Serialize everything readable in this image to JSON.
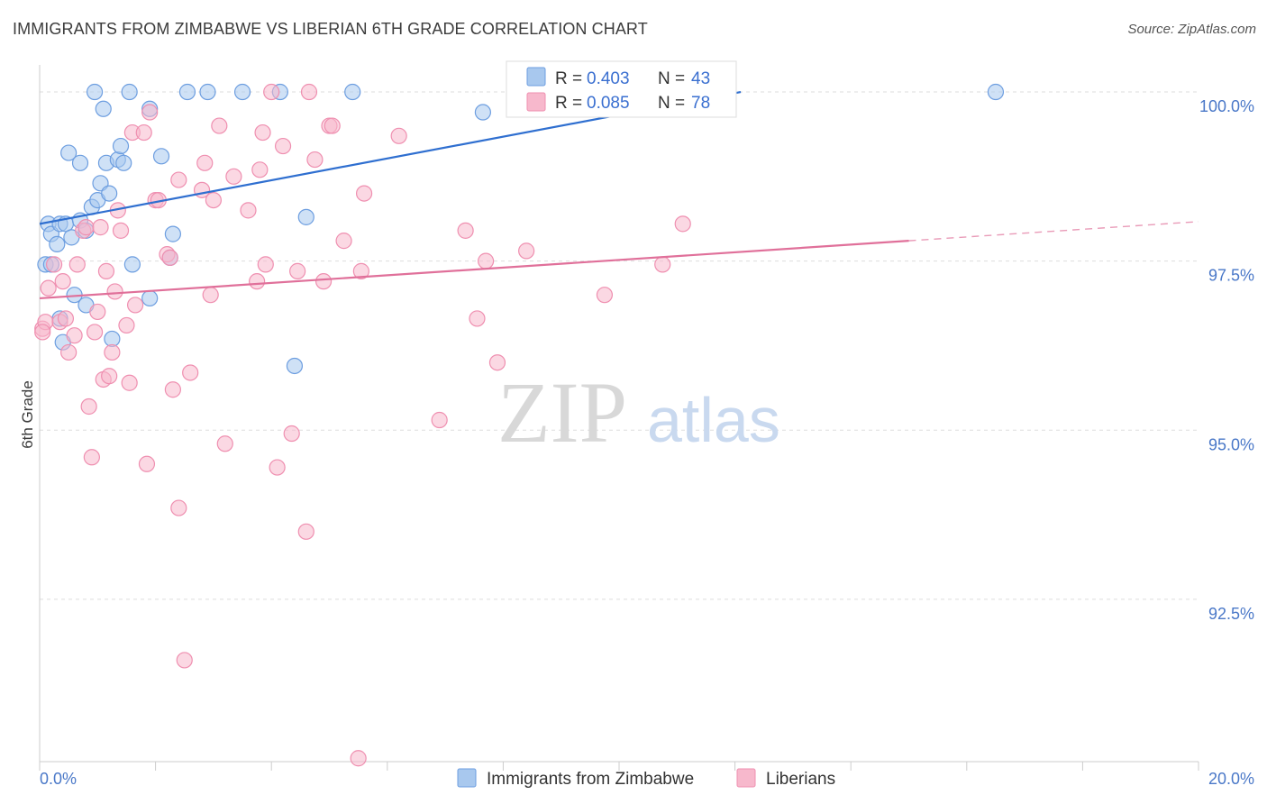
{
  "title": "IMMIGRANTS FROM ZIMBABWE VS LIBERIAN 6TH GRADE CORRELATION CHART",
  "source": "Source: ZipAtlas.com",
  "watermark": {
    "zip": "ZIP",
    "atlas": "atlas"
  },
  "colors": {
    "blue_fill": "#a8c8ee",
    "blue_stroke": "#6d9ee0",
    "blue_line": "#2f6fd0",
    "pink_fill": "#f7b8cc",
    "pink_stroke": "#ef8fb0",
    "pink_line": "#e0709a",
    "grid": "#dddddd",
    "tick_text": "#4a78c8"
  },
  "chart_data": {
    "type": "scatter",
    "title": "IMMIGRANTS FROM ZIMBABWE VS LIBERIAN 6TH GRADE CORRELATION CHART",
    "xlabel": "",
    "ylabel": "6th Grade",
    "xlim": [
      0,
      20
    ],
    "ylim": [
      90.1,
      100.4
    ],
    "x_tick_labels": [
      {
        "value": 0,
        "label": "0.0%"
      },
      {
        "value": 20,
        "label": "20.0%"
      }
    ],
    "y_tick_labels": [
      {
        "value": 100.0,
        "label": "100.0%"
      },
      {
        "value": 97.5,
        "label": "97.5%"
      },
      {
        "value": 95.0,
        "label": "95.0%"
      },
      {
        "value": 92.5,
        "label": "92.5%"
      }
    ],
    "grid": true,
    "legend_position": "top-center",
    "legend": [
      {
        "r_label": "R =",
        "r_value": "0.403",
        "n_label": "N =",
        "n_value": "43"
      },
      {
        "r_label": "R =",
        "r_value": "0.085",
        "n_label": "N =",
        "n_value": "78"
      }
    ],
    "series": [
      {
        "name": "Immigrants from Zimbabwe",
        "color": "#a8c8ee",
        "trend": {
          "x0": 0.0,
          "y0": 98.05,
          "x1": 12.1,
          "y1": 100.0,
          "dashed_to_x": null
        },
        "points": [
          [
            0.15,
            98.05
          ],
          [
            0.2,
            97.9
          ],
          [
            0.3,
            97.75
          ],
          [
            0.35,
            98.05
          ],
          [
            0.45,
            98.05
          ],
          [
            0.55,
            97.85
          ],
          [
            0.6,
            97.0
          ],
          [
            0.7,
            98.1
          ],
          [
            0.8,
            97.95
          ],
          [
            0.9,
            98.3
          ],
          [
            1.0,
            98.4
          ],
          [
            1.05,
            98.65
          ],
          [
            1.2,
            98.5
          ],
          [
            0.5,
            99.1
          ],
          [
            0.7,
            98.95
          ],
          [
            1.15,
            98.95
          ],
          [
            1.35,
            99.0
          ],
          [
            1.4,
            99.2
          ],
          [
            1.45,
            98.95
          ],
          [
            1.1,
            99.75
          ],
          [
            0.95,
            100.0
          ],
          [
            1.55,
            100.0
          ],
          [
            1.9,
            99.75
          ],
          [
            2.1,
            99.05
          ],
          [
            2.3,
            97.9
          ],
          [
            2.25,
            97.55
          ],
          [
            1.6,
            97.45
          ],
          [
            1.9,
            96.95
          ],
          [
            0.1,
            97.45
          ],
          [
            0.2,
            97.45
          ],
          [
            0.35,
            96.65
          ],
          [
            0.4,
            96.3
          ],
          [
            0.8,
            96.85
          ],
          [
            1.25,
            96.35
          ],
          [
            2.55,
            100.0
          ],
          [
            2.9,
            100.0
          ],
          [
            3.5,
            100.0
          ],
          [
            4.15,
            100.0
          ],
          [
            5.4,
            100.0
          ],
          [
            4.4,
            95.95
          ],
          [
            4.6,
            98.15
          ],
          [
            7.65,
            99.7
          ],
          [
            16.5,
            100.0
          ]
        ]
      },
      {
        "name": "Liberians",
        "color": "#f7b8cc",
        "trend": {
          "x0": 0.0,
          "y0": 96.95,
          "x1": 15.0,
          "y1": 97.8,
          "dashed_to_x": 20.0
        },
        "points": [
          [
            0.05,
            96.5
          ],
          [
            0.1,
            96.6
          ],
          [
            0.15,
            97.1
          ],
          [
            0.25,
            97.45
          ],
          [
            0.35,
            96.6
          ],
          [
            0.45,
            96.65
          ],
          [
            0.4,
            97.2
          ],
          [
            0.5,
            96.15
          ],
          [
            0.6,
            96.4
          ],
          [
            0.65,
            97.45
          ],
          [
            0.75,
            97.95
          ],
          [
            0.8,
            98.0
          ],
          [
            0.85,
            95.35
          ],
          [
            0.9,
            94.6
          ],
          [
            0.95,
            96.45
          ],
          [
            1.0,
            96.75
          ],
          [
            1.05,
            98.0
          ],
          [
            1.1,
            95.75
          ],
          [
            1.15,
            97.35
          ],
          [
            1.2,
            95.8
          ],
          [
            1.25,
            96.15
          ],
          [
            1.3,
            97.05
          ],
          [
            1.35,
            98.25
          ],
          [
            1.4,
            97.95
          ],
          [
            1.5,
            96.55
          ],
          [
            1.55,
            95.7
          ],
          [
            1.6,
            99.4
          ],
          [
            1.65,
            96.85
          ],
          [
            1.8,
            99.4
          ],
          [
            1.85,
            94.5
          ],
          [
            1.9,
            99.7
          ],
          [
            2.0,
            98.4
          ],
          [
            2.05,
            98.4
          ],
          [
            2.2,
            97.6
          ],
          [
            2.25,
            97.55
          ],
          [
            2.3,
            95.6
          ],
          [
            2.4,
            98.7
          ],
          [
            2.4,
            93.85
          ],
          [
            2.5,
            91.6
          ],
          [
            2.6,
            95.85
          ],
          [
            2.8,
            98.55
          ],
          [
            2.85,
            98.95
          ],
          [
            2.95,
            97.0
          ],
          [
            3.0,
            98.4
          ],
          [
            3.1,
            99.5
          ],
          [
            3.2,
            94.8
          ],
          [
            3.35,
            98.75
          ],
          [
            3.6,
            98.25
          ],
          [
            3.75,
            97.2
          ],
          [
            3.8,
            98.85
          ],
          [
            3.85,
            99.4
          ],
          [
            3.9,
            97.45
          ],
          [
            4.0,
            100.0
          ],
          [
            4.1,
            94.45
          ],
          [
            4.2,
            99.2
          ],
          [
            4.35,
            94.95
          ],
          [
            4.45,
            97.35
          ],
          [
            4.6,
            93.5
          ],
          [
            4.65,
            100.0
          ],
          [
            4.75,
            99.0
          ],
          [
            4.9,
            97.2
          ],
          [
            5.0,
            99.5
          ],
          [
            5.05,
            99.5
          ],
          [
            5.25,
            97.8
          ],
          [
            5.55,
            97.35
          ],
          [
            5.6,
            98.5
          ],
          [
            5.5,
            90.15
          ],
          [
            6.2,
            99.35
          ],
          [
            6.9,
            95.15
          ],
          [
            7.35,
            97.95
          ],
          [
            7.55,
            96.65
          ],
          [
            7.7,
            97.5
          ],
          [
            7.9,
            96.0
          ],
          [
            8.4,
            97.65
          ],
          [
            9.75,
            97.0
          ],
          [
            10.75,
            97.45
          ],
          [
            11.1,
            98.05
          ],
          [
            0.05,
            96.45
          ]
        ]
      }
    ]
  }
}
